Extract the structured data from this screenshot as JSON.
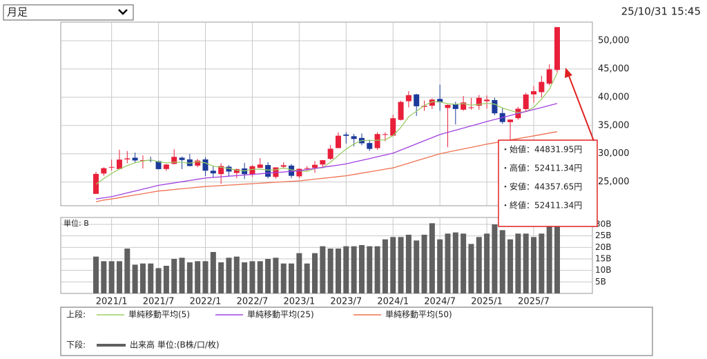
{
  "header": {
    "period": "月足",
    "timestamp": "25/10/31 15:45"
  },
  "chart_data": [
    {
      "type": "candlestick",
      "categories": [
        null,
        null,
        "2021/1",
        null,
        null,
        null,
        null,
        null,
        "2021/7",
        null,
        null,
        null,
        null,
        null,
        "2022/1",
        null,
        null,
        null,
        null,
        null,
        "2022/7",
        null,
        null,
        null,
        null,
        null,
        "2023/1",
        null,
        null,
        null,
        null,
        null,
        "2023/7",
        null,
        null,
        null,
        null,
        null,
        "2024/1",
        null,
        null,
        null,
        null,
        null,
        "2024/7",
        null,
        null,
        null,
        null,
        null,
        "2025/1",
        null,
        null,
        null,
        null,
        null,
        "2025/7",
        null,
        null,
        null
      ],
      "open": [
        22900,
        26500,
        27600,
        27300,
        29000,
        29300,
        28800,
        28900,
        28700,
        27300,
        28200,
        29300,
        29000,
        27900,
        29000,
        27000,
        26400,
        27700,
        26600,
        27400,
        26300,
        27500,
        28000,
        25900,
        27700,
        27900,
        26000,
        27400,
        27500,
        28100,
        29100,
        31000,
        33400,
        33100,
        32800,
        31900,
        31000,
        33400,
        33200,
        36000,
        39300,
        40500,
        38300,
        38500,
        39700,
        38100,
        38700,
        37800,
        38100,
        38500,
        39300,
        39500,
        37200,
        35600,
        36300,
        37900,
        40500,
        40900,
        42400,
        44831.95
      ],
      "high": [
        26800,
        27600,
        28980,
        30714,
        30485,
        30208,
        29700,
        29480,
        28800,
        28200,
        30795,
        29500,
        29960,
        29100,
        29388,
        27880,
        28338,
        28000,
        27369,
        28389,
        27993,
        29222,
        28500,
        27600,
        28502,
        28200,
        27400,
        27800,
        28734,
        28900,
        31560,
        33772,
        33800,
        33500,
        33600,
        32500,
        33800,
        33800,
        36900,
        39400,
        41087,
        40600,
        39400,
        39800,
        42224,
        38700,
        39200,
        40200,
        39900,
        40400,
        40300,
        39900,
        38200,
        36100,
        38300,
        40800,
        42000,
        43800,
        45800,
        52411.34
      ],
      "low": [
        22900,
        26100,
        27000,
        27300,
        28300,
        28400,
        27385,
        28500,
        27200,
        26954,
        28100,
        27293,
        27800,
        27600,
        26044,
        25800,
        24681,
        26000,
        25688,
        25520,
        25900,
        27500,
        25621,
        25600,
        27300,
        25700,
        25662,
        27000,
        26632,
        27427,
        28900,
        31000,
        31800,
        31300,
        31500,
        30500,
        30700,
        32200,
        33100,
        35900,
        38200,
        36700,
        37600,
        37900,
        37600,
        31156,
        35200,
        37600,
        37800,
        37800,
        38000,
        36800,
        35300,
        30792,
        36000,
        37500,
        39000,
        40000,
        42100,
        44357.65
      ],
      "close": [
        26433,
        27444,
        27663,
        28966,
        29178,
        28812,
        28860,
        28791,
        27283,
        28089,
        29452,
        28892,
        27821,
        28791,
        27001,
        26526,
        27821,
        26847,
        27279,
        26393,
        27801,
        28091,
        25937,
        27587,
        27968,
        26094,
        27327,
        27445,
        28041,
        28856,
        30887,
        33189,
        33172,
        32619,
        31857,
        30858,
        33486,
        33464,
        36286,
        39166,
        40369,
        38405,
        38487,
        39583,
        39101,
        38647,
        37919,
        39081,
        38208,
        39894,
        39572,
        37155,
        35617,
        36045,
        37965,
        40487,
        41069,
        42718,
        44932,
        52411.34
      ],
      "up_color": "#e8203a",
      "down_color": "#1c3a9a",
      "series": [
        {
          "name": "単純移動平均(5)",
          "color": "#9acd64",
          "values": [
            24600,
            25600,
            26500,
            27300,
            27900,
            28400,
            28700,
            28920,
            28590,
            28370,
            28500,
            28500,
            28310,
            28610,
            28390,
            27810,
            27590,
            27400,
            27090,
            26970,
            27230,
            27280,
            27100,
            27160,
            27480,
            27140,
            26980,
            26880,
            27380,
            27550,
            28510,
            29680,
            30830,
            31740,
            32340,
            32340,
            32400,
            32460,
            33190,
            34650,
            36550,
            37540,
            38540,
            39200,
            39190,
            38840,
            38750,
            38870,
            38590,
            38750,
            38930,
            38780,
            38090,
            37660,
            37270,
            37450,
            38240,
            39660,
            41430,
            44320
          ]
        },
        {
          "name": "単純移動平均(25)",
          "color": "#a040e0",
          "values": [
            22000,
            22200,
            22400,
            22730,
            23070,
            23400,
            23730,
            24070,
            24400,
            24620,
            24830,
            25050,
            25270,
            25480,
            25700,
            25810,
            25920,
            26030,
            26130,
            26240,
            26350,
            26460,
            26570,
            26680,
            26780,
            26890,
            27000,
            27200,
            27400,
            27600,
            27800,
            28000,
            28200,
            28520,
            28830,
            29150,
            29470,
            29780,
            30100,
            30650,
            31200,
            31750,
            32300,
            32850,
            33400,
            33780,
            34170,
            34550,
            34930,
            35320,
            35700,
            36060,
            36410,
            36770,
            37120,
            37480,
            37830,
            38190,
            38540,
            38900
          ]
        },
        {
          "name": "単純移動平均(50)",
          "color": "#f07050",
          "values": [
            21500,
            21800,
            22000,
            22230,
            22470,
            22700,
            22930,
            23170,
            23400,
            23530,
            23670,
            23800,
            23930,
            24070,
            24200,
            24280,
            24370,
            24450,
            24530,
            24620,
            24700,
            24780,
            24870,
            24950,
            25030,
            25120,
            25200,
            25350,
            25500,
            25650,
            25800,
            25950,
            26100,
            26330,
            26570,
            26800,
            27030,
            27270,
            27500,
            27920,
            28330,
            28750,
            29170,
            29580,
            30000,
            30280,
            30570,
            30850,
            31130,
            31420,
            31700,
            31940,
            32190,
            32430,
            32680,
            32920,
            33170,
            33410,
            33660,
            33900
          ]
        }
      ],
      "ylim": [
        20800,
        53300
      ],
      "yticks": [
        {
          "value": 25000,
          "label": "25,000"
        },
        {
          "value": 30000,
          "label": "30,000"
        },
        {
          "value": 35000,
          "label": "35,000"
        },
        {
          "value": 40000,
          "label": "40,000"
        },
        {
          "value": 45000,
          "label": "45,000"
        },
        {
          "value": 50000,
          "label": "50,000"
        }
      ],
      "grid": true
    },
    {
      "type": "bar",
      "unit_label": "単位: B",
      "name": "出来高 単位:(B株/口/枚)",
      "color": "#606060",
      "values": [
        16,
        14,
        14,
        14,
        19.5,
        12.5,
        13,
        13,
        11,
        12,
        15,
        15.5,
        13.5,
        14,
        14,
        18,
        13.5,
        15.5,
        16,
        13.5,
        14,
        14,
        15,
        15.5,
        13,
        13,
        17.5,
        13,
        17.5,
        20.5,
        19.5,
        19.5,
        20.5,
        20.5,
        21,
        20.5,
        20.5,
        23.5,
        24.5,
        24.5,
        25.5,
        23,
        25.5,
        30.5,
        23.5,
        26,
        26.5,
        26,
        21.5,
        24.5,
        26,
        30,
        27.5,
        23.5,
        26,
        26,
        24.5,
        26,
        30.5,
        33
      ],
      "ylim": [
        0,
        33
      ],
      "yticks": [
        {
          "value": 5,
          "label": "5B"
        },
        {
          "value": 10,
          "label": "10B"
        },
        {
          "value": 15,
          "label": "15B"
        },
        {
          "value": 20,
          "label": "20B"
        },
        {
          "value": 25,
          "label": "25B"
        },
        {
          "value": 30,
          "label": "30B"
        }
      ],
      "grid": true
    }
  ],
  "legend": {
    "upper": "上段:",
    "lower": "下段:"
  },
  "tooltip": [
    "・始値：44831.95円",
    "・高値：52411.34円",
    "・安値：44357.65円",
    "・終値：52411.34円"
  ]
}
